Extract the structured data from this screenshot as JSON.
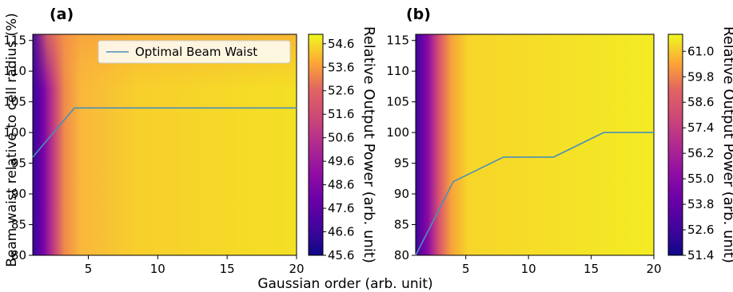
{
  "figure": {
    "xlabel": "Gaussian order (arb. unit)",
    "ylabel": "Beam waist relative to cell radius (%)"
  },
  "colors": {
    "colormap": "plasma",
    "optimal_line": "#4a90b8"
  },
  "chart_data": [
    {
      "type": "heatmap",
      "panel_label": "(a)",
      "x_range": [
        1,
        20
      ],
      "y_range": [
        80,
        116
      ],
      "x_ticks": [
        "5",
        "10",
        "15",
        "20"
      ],
      "y_ticks": [
        "80",
        "85",
        "90",
        "95",
        "100",
        "105",
        "110",
        "115"
      ],
      "colorbar": {
        "label": "Relative Output Power (arb. unit)",
        "range": [
          45.6,
          55.0
        ],
        "ticks": [
          "45.6",
          "46.6",
          "47.6",
          "48.6",
          "49.6",
          "50.6",
          "51.6",
          "52.6",
          "53.6",
          "54.6"
        ]
      },
      "legend": {
        "entry": "Optimal Beam Waist",
        "placement": "top-right"
      },
      "optimal_line": {
        "x": [
          1,
          4,
          20
        ],
        "y": [
          96,
          104,
          104
        ]
      }
    },
    {
      "type": "heatmap",
      "panel_label": "(b)",
      "x_range": [
        1,
        20
      ],
      "y_range": [
        80,
        116
      ],
      "x_ticks": [
        "5",
        "10",
        "15",
        "20"
      ],
      "y_ticks": [
        "80",
        "85",
        "90",
        "95",
        "100",
        "105",
        "110",
        "115"
      ],
      "colorbar": {
        "label": "Relative Output Power (arb. unit)",
        "range": [
          51.4,
          61.8
        ],
        "ticks": [
          "51.4",
          "52.6",
          "53.8",
          "55.0",
          "56.2",
          "57.4",
          "58.6",
          "59.8",
          "61.0"
        ]
      },
      "optimal_line": {
        "x": [
          1,
          2,
          4,
          8,
          12,
          16,
          20
        ],
        "y": [
          80,
          84,
          92,
          96,
          96,
          100,
          100
        ]
      }
    }
  ]
}
